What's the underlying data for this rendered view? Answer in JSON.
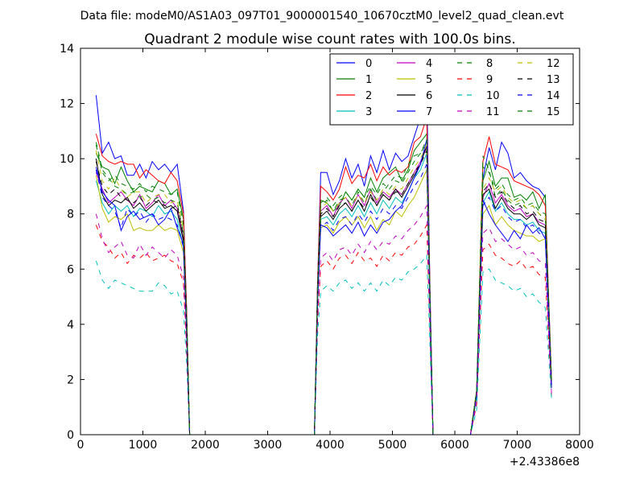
{
  "suptitle": "Data file: modeM0/AS1A03_097T01_9000001540_10670cztM0_level2_quad_clean.evt",
  "chart_data": {
    "type": "line",
    "title": "Quadrant 2 module wise count rates with 100.0s bins.",
    "xlabel": "",
    "ylabel": "",
    "x_offset_label": "+2.43386e8",
    "xlim": [
      0,
      8000
    ],
    "ylim": [
      0,
      14
    ],
    "xticks": [
      0,
      1000,
      2000,
      3000,
      4000,
      5000,
      6000,
      7000,
      8000
    ],
    "yticks": [
      0,
      2,
      4,
      6,
      8,
      10,
      12,
      14
    ],
    "grid": false,
    "legend_location": "top-right",
    "legend_columns": 4,
    "x": [
      250,
      350,
      450,
      550,
      650,
      750,
      850,
      950,
      1050,
      1150,
      1250,
      1350,
      1450,
      1550,
      1650,
      1700,
      1750,
      1850,
      3750,
      3800,
      3850,
      3950,
      4050,
      4150,
      4250,
      4350,
      4450,
      4550,
      4650,
      4750,
      4850,
      4950,
      5050,
      5150,
      5250,
      5350,
      5450,
      5550,
      5600,
      5650,
      5750,
      6250,
      6350,
      6450,
      6550,
      6650,
      6750,
      6850,
      6950,
      7050,
      7150,
      7250,
      7350,
      7450,
      7500,
      7550
    ],
    "series": [
      {
        "name": "0",
        "color": "#0000ff",
        "dash": "solid",
        "values": [
          12.3,
          10.2,
          10.6,
          10.0,
          10.1,
          9.4,
          9.4,
          9.8,
          9.3,
          9.9,
          9.6,
          9.8,
          9.5,
          9.8,
          8.1,
          4.6,
          0,
          0,
          0,
          5.5,
          9.5,
          9.5,
          8.7,
          9.2,
          10.0,
          9.3,
          9.8,
          9.0,
          10.1,
          9.5,
          10.3,
          9.6,
          10.2,
          9.9,
          10.1,
          10.8,
          11.5,
          12.7,
          5.5,
          0,
          0,
          0,
          1.5,
          9.3,
          10.4,
          9.6,
          10.6,
          10.2,
          9.3,
          9.5,
          9.2,
          9.0,
          8.9,
          8.6,
          5.2,
          2.0
        ]
      },
      {
        "name": "1",
        "color": "#008000",
        "dash": "solid",
        "values": [
          10.2,
          9.7,
          9.6,
          9.1,
          9.7,
          9.2,
          8.8,
          9.0,
          8.9,
          8.8,
          9.2,
          9.1,
          8.7,
          8.9,
          7.8,
          4.4,
          0,
          0,
          0,
          5.4,
          8.5,
          8.4,
          8.1,
          8.3,
          8.8,
          8.5,
          8.9,
          8.6,
          9.3,
          8.8,
          9.3,
          9.5,
          9.7,
          9.2,
          9.6,
          10.3,
          10.6,
          10.9,
          5.3,
          0,
          0,
          0,
          1.6,
          9.2,
          9.9,
          9.0,
          9.3,
          9.3,
          8.6,
          8.7,
          8.5,
          8.8,
          8.2,
          8.7,
          5.0,
          2.0
        ]
      },
      {
        "name": "2",
        "color": "#ff0000",
        "dash": "solid",
        "values": [
          10.9,
          10.1,
          9.9,
          9.8,
          9.9,
          9.8,
          9.8,
          9.3,
          9.6,
          9.4,
          9.2,
          9.1,
          9.5,
          9.2,
          8.0,
          4.5,
          0,
          0,
          0,
          5.5,
          9.0,
          8.8,
          8.5,
          8.9,
          9.7,
          9.1,
          9.4,
          9.3,
          9.8,
          9.2,
          9.7,
          9.4,
          9.6,
          9.5,
          9.7,
          10.6,
          10.8,
          11.5,
          5.5,
          0,
          0,
          0,
          1.6,
          9.9,
          10.8,
          9.8,
          9.7,
          9.6,
          9.2,
          9.1,
          9.0,
          8.9,
          8.7,
          8.3,
          5.1,
          2.0
        ]
      },
      {
        "name": "3",
        "color": "#00bfbf",
        "dash": "solid",
        "values": [
          9.2,
          8.4,
          8.0,
          8.3,
          8.1,
          8.3,
          7.9,
          8.2,
          8.1,
          7.9,
          8.3,
          8.0,
          8.1,
          7.8,
          6.8,
          3.8,
          0,
          0,
          0,
          4.9,
          7.8,
          7.9,
          7.6,
          8.0,
          8.2,
          7.9,
          8.3,
          7.9,
          8.4,
          8.0,
          8.5,
          8.2,
          8.6,
          8.4,
          8.8,
          9.3,
          9.6,
          10.2,
          4.9,
          0,
          0,
          0,
          1.4,
          8.4,
          8.8,
          8.1,
          8.4,
          8.0,
          7.8,
          7.8,
          7.6,
          7.7,
          7.4,
          7.3,
          4.5,
          1.7
        ]
      },
      {
        "name": "4",
        "color": "#bf00bf",
        "dash": "solid",
        "values": [
          9.5,
          8.9,
          8.4,
          8.6,
          8.8,
          8.5,
          8.3,
          8.7,
          8.2,
          8.4,
          8.7,
          8.3,
          8.5,
          8.2,
          7.1,
          4.0,
          0,
          0,
          0,
          5.1,
          8.1,
          8.3,
          7.9,
          8.4,
          8.6,
          8.2,
          8.7,
          8.3,
          8.9,
          8.4,
          8.8,
          8.6,
          8.9,
          8.7,
          9.1,
          9.5,
          9.9,
          10.4,
          5.0,
          0,
          0,
          0,
          1.5,
          8.6,
          9.1,
          8.4,
          8.7,
          8.3,
          8.1,
          8.2,
          7.9,
          8.0,
          7.7,
          7.6,
          4.7,
          1.8
        ]
      },
      {
        "name": "5",
        "color": "#bfbf00",
        "dash": "solid",
        "values": [
          9.4,
          8.2,
          7.7,
          7.9,
          7.8,
          8.0,
          7.4,
          7.5,
          7.4,
          7.4,
          7.6,
          7.4,
          7.5,
          7.4,
          6.6,
          3.7,
          0,
          0,
          0,
          4.8,
          7.5,
          7.6,
          7.3,
          7.7,
          7.9,
          7.6,
          7.9,
          7.5,
          7.9,
          7.4,
          7.8,
          7.6,
          8.1,
          7.9,
          8.3,
          8.6,
          9.1,
          9.6,
          4.7,
          0,
          0,
          0,
          1.4,
          8.0,
          8.3,
          7.6,
          7.9,
          7.6,
          7.4,
          7.3,
          7.2,
          7.2,
          7.0,
          7.1,
          4.4,
          1.7
        ]
      },
      {
        "name": "6",
        "color": "#000000",
        "dash": "solid",
        "values": [
          10.0,
          8.7,
          8.3,
          8.5,
          8.4,
          8.6,
          8.2,
          8.4,
          8.1,
          8.3,
          8.5,
          8.2,
          8.3,
          8.1,
          7.0,
          3.9,
          0,
          0,
          0,
          5.0,
          7.9,
          8.1,
          7.8,
          8.2,
          8.4,
          8.1,
          8.5,
          8.1,
          8.7,
          8.3,
          8.7,
          8.5,
          8.9,
          8.6,
          9.0,
          9.4,
          9.8,
          10.5,
          5.0,
          0,
          0,
          0,
          1.5,
          8.7,
          8.9,
          8.2,
          8.6,
          8.2,
          8.0,
          8.0,
          7.8,
          8.0,
          7.6,
          7.5,
          4.6,
          1.8
        ]
      },
      {
        "name": "7",
        "color": "#0000ff",
        "dash": "solid",
        "values": [
          9.7,
          8.8,
          8.5,
          8.3,
          7.4,
          7.9,
          8.1,
          7.8,
          7.9,
          8.0,
          7.6,
          7.8,
          8.2,
          7.5,
          6.9,
          3.8,
          0,
          0,
          0,
          4.9,
          7.6,
          7.5,
          7.2,
          7.4,
          7.6,
          7.3,
          7.7,
          7.2,
          7.6,
          7.3,
          7.7,
          7.8,
          8.1,
          8.3,
          8.8,
          9.3,
          9.8,
          10.7,
          5.1,
          0,
          0,
          0,
          1.5,
          8.5,
          8.0,
          7.6,
          7.3,
          7.0,
          7.4,
          7.1,
          7.6,
          7.3,
          7.5,
          7.1,
          4.4,
          1.7
        ]
      },
      {
        "name": "8",
        "color": "#008000",
        "dash": "dashed",
        "values": [
          10.6,
          9.6,
          9.3,
          9.0,
          8.9,
          8.7,
          8.8,
          8.6,
          8.7,
          8.5,
          8.6,
          8.4,
          8.5,
          8.4,
          7.3,
          4.1,
          0,
          0,
          0,
          5.2,
          8.3,
          8.5,
          8.1,
          8.5,
          8.6,
          8.3,
          8.8,
          8.4,
          8.9,
          8.5,
          8.8,
          9.1,
          9.4,
          9.3,
          9.8,
          10.1,
          10.2,
          10.6,
          5.2,
          0,
          0,
          0,
          1.6,
          10.1,
          9.6,
          8.6,
          8.9,
          8.5,
          8.3,
          8.4,
          8.2,
          8.3,
          8.0,
          7.8,
          4.8,
          1.9
        ]
      },
      {
        "name": "9",
        "color": "#ff0000",
        "dash": "dashed",
        "values": [
          7.6,
          7.0,
          6.8,
          6.4,
          6.6,
          6.2,
          6.5,
          6.4,
          6.6,
          6.3,
          6.4,
          6.5,
          6.3,
          6.2,
          5.5,
          3.1,
          0,
          0,
          0,
          4.1,
          6.1,
          6.3,
          6.0,
          6.4,
          6.5,
          6.2,
          6.6,
          6.3,
          6.4,
          6.1,
          6.5,
          6.3,
          6.6,
          6.5,
          6.8,
          6.9,
          7.2,
          7.6,
          3.8,
          0,
          0,
          0,
          1.1,
          6.7,
          6.9,
          6.5,
          6.4,
          6.2,
          6.1,
          6.3,
          6.0,
          6.1,
          5.8,
          5.7,
          3.6,
          1.4
        ]
      },
      {
        "name": "10",
        "color": "#00bfbf",
        "dash": "dashed",
        "values": [
          6.3,
          5.6,
          5.3,
          5.6,
          5.5,
          5.4,
          5.3,
          5.2,
          5.2,
          5.2,
          5.5,
          5.4,
          5.1,
          5.2,
          4.5,
          2.6,
          0,
          0,
          0,
          3.6,
          5.2,
          5.4,
          5.2,
          5.5,
          5.6,
          5.3,
          5.5,
          5.2,
          5.5,
          5.2,
          5.6,
          5.4,
          5.7,
          5.6,
          5.9,
          6.0,
          6.2,
          6.5,
          3.3,
          0,
          0,
          0,
          0.9,
          5.9,
          6.0,
          5.6,
          5.5,
          5.4,
          5.2,
          5.3,
          5.0,
          5.1,
          4.8,
          4.6,
          3.0,
          1.3
        ]
      },
      {
        "name": "11",
        "color": "#bf00bf",
        "dash": "dashed",
        "values": [
          8.0,
          7.1,
          6.6,
          6.8,
          7.0,
          6.5,
          6.4,
          6.9,
          6.5,
          6.8,
          6.6,
          6.4,
          6.7,
          6.5,
          5.7,
          3.2,
          0,
          0,
          0,
          4.2,
          6.4,
          6.6,
          6.3,
          6.7,
          6.8,
          6.5,
          6.9,
          6.6,
          7.0,
          6.7,
          7.0,
          6.9,
          7.2,
          7.1,
          7.4,
          7.6,
          7.9,
          8.3,
          4.1,
          0,
          0,
          0,
          1.2,
          7.3,
          7.5,
          7.0,
          7.1,
          6.9,
          6.7,
          6.8,
          6.5,
          6.6,
          6.3,
          6.2,
          3.9,
          1.5
        ]
      },
      {
        "name": "12",
        "color": "#bfbf00",
        "dash": "dashed",
        "values": [
          10.3,
          9.2,
          8.9,
          9.3,
          8.9,
          8.6,
          8.8,
          8.8,
          8.4,
          8.6,
          8.7,
          8.7,
          8.4,
          8.5,
          7.4,
          4.2,
          0,
          0,
          0,
          5.3,
          8.2,
          8.4,
          8.1,
          8.4,
          8.6,
          8.3,
          8.7,
          8.4,
          8.8,
          8.5,
          8.9,
          8.7,
          9.0,
          8.9,
          9.3,
          9.7,
          10.0,
          10.5,
          5.1,
          0,
          0,
          0,
          1.5,
          8.9,
          9.3,
          8.8,
          9.0,
          8.6,
          8.4,
          8.5,
          8.2,
          8.3,
          8.0,
          7.9,
          4.9,
          1.9
        ]
      },
      {
        "name": "13",
        "color": "#000000",
        "dash": "dashed",
        "values": [
          9.9,
          9.0,
          8.7,
          8.9,
          8.6,
          8.5,
          8.4,
          8.6,
          8.3,
          8.5,
          8.4,
          8.3,
          8.2,
          8.3,
          7.2,
          4.1,
          0,
          0,
          0,
          5.2,
          8.0,
          8.2,
          7.9,
          8.3,
          8.4,
          8.1,
          8.5,
          8.2,
          8.6,
          8.3,
          8.7,
          8.5,
          8.8,
          8.7,
          9.1,
          9.5,
          9.8,
          10.3,
          5.0,
          0,
          0,
          0,
          1.5,
          8.8,
          9.1,
          8.6,
          8.8,
          8.4,
          8.2,
          8.3,
          8.0,
          8.1,
          7.8,
          7.7,
          4.8,
          1.8
        ]
      },
      {
        "name": "14",
        "color": "#0000ff",
        "dash": "dashed",
        "values": [
          9.6,
          8.6,
          8.3,
          8.1,
          7.5,
          8.2,
          7.9,
          8.1,
          7.7,
          8.0,
          7.8,
          7.9,
          7.8,
          7.6,
          6.8,
          3.8,
          0,
          0,
          0,
          4.9,
          7.5,
          7.7,
          7.4,
          7.8,
          7.9,
          7.6,
          8.0,
          7.7,
          8.1,
          7.8,
          8.2,
          8.0,
          8.3,
          8.2,
          8.6,
          9.0,
          9.3,
          9.8,
          4.8,
          0,
          0,
          0,
          1.4,
          8.3,
          8.6,
          8.1,
          8.3,
          7.9,
          7.7,
          7.8,
          7.5,
          7.6,
          7.3,
          7.2,
          4.5,
          1.7
        ]
      },
      {
        "name": "15",
        "color": "#008000",
        "dash": "dashed",
        "values": [
          10.5,
          9.5,
          9.2,
          9.4,
          9.1,
          9.0,
          8.9,
          9.1,
          8.8,
          9.0,
          8.9,
          8.8,
          8.7,
          8.8,
          7.6,
          4.3,
          0,
          0,
          0,
          5.4,
          8.4,
          8.6,
          8.3,
          8.6,
          8.8,
          8.5,
          8.9,
          8.6,
          9.0,
          8.7,
          9.1,
          8.9,
          9.2,
          9.1,
          9.5,
          9.9,
          10.2,
          10.7,
          5.2,
          0,
          0,
          0,
          1.6,
          9.7,
          9.5,
          8.9,
          9.1,
          8.7,
          8.5,
          8.6,
          8.3,
          8.4,
          8.1,
          8.0,
          5.0,
          1.9
        ]
      }
    ]
  }
}
